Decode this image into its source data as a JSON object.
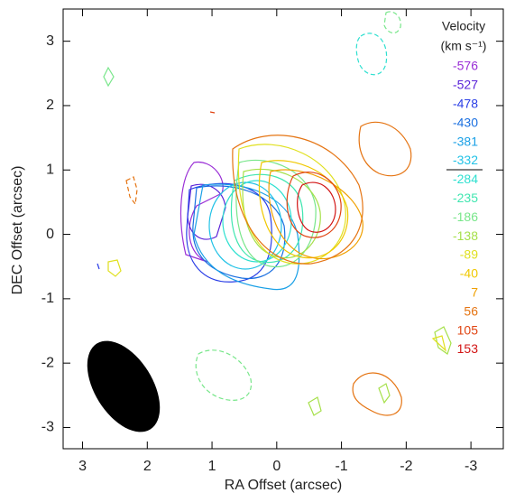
{
  "chart_data": {
    "type": "contour",
    "x_label": "RA Offset (arcsec)",
    "y_label": "DEC Offset (arcsec)",
    "legend_title": "Velocity",
    "legend_unit": "(km s⁻¹)",
    "xlim": [
      3.3,
      -3.5
    ],
    "xticks": [
      3,
      2,
      1,
      0,
      -1,
      -2,
      -3
    ],
    "ylim": [
      -3.33,
      3.5
    ],
    "yticks": [
      -3,
      -2,
      -1,
      0,
      1,
      2,
      3
    ],
    "series": [
      {
        "name": "-576",
        "color": "#9a2fd6"
      },
      {
        "name": "-527",
        "color": "#5a22d8"
      },
      {
        "name": "-478",
        "color": "#2a3ee6"
      },
      {
        "name": "-430",
        "color": "#1a6fe0"
      },
      {
        "name": "-381",
        "color": "#1aa0e6"
      },
      {
        "name": "-332",
        "color": "#22c2e6"
      },
      {
        "name": "-284",
        "color": "#2fe0d0"
      },
      {
        "name": "-235",
        "color": "#40e6b0"
      },
      {
        "name": "-186",
        "color": "#78e68a"
      },
      {
        "name": "-138",
        "color": "#a6e04a"
      },
      {
        "name": "-89",
        "color": "#e0e020"
      },
      {
        "name": "-40",
        "color": "#f0c800"
      },
      {
        "name": "7",
        "color": "#f0a000"
      },
      {
        "name": "56",
        "color": "#e57412"
      },
      {
        "name": "105",
        "color": "#e04412"
      },
      {
        "name": "153",
        "color": "#d21414"
      }
    ]
  }
}
